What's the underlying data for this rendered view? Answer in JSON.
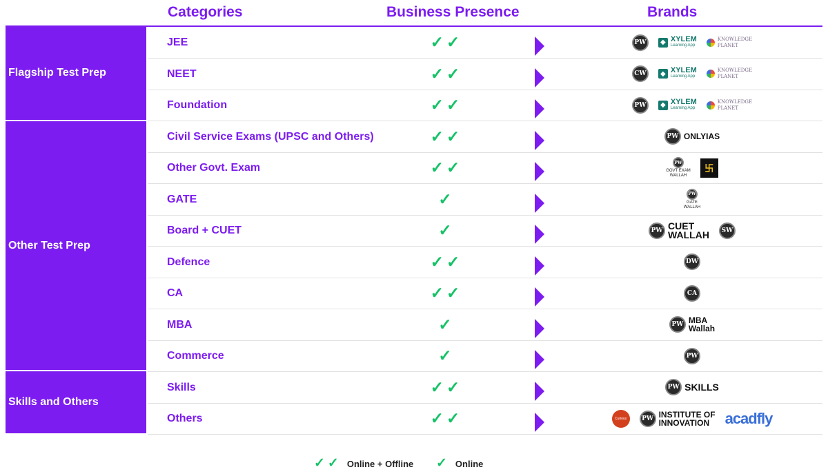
{
  "headers": {
    "categories": "Categories",
    "presence": "Business Presence",
    "brands": "Brands"
  },
  "groups": [
    {
      "label": "Flagship Test Prep"
    },
    {
      "label": "Other Test Prep"
    },
    {
      "label": "Skills and Others"
    }
  ],
  "rows": [
    {
      "category": "JEE",
      "presence": "✓✓",
      "brands": [
        {
          "type": "pw-circle",
          "text": "PW"
        },
        {
          "type": "xylem",
          "name": "XYLEM",
          "sub": "Learning App"
        },
        {
          "type": "knowledge",
          "name": "KNOWLEDGE\nPLANET"
        }
      ]
    },
    {
      "category": "NEET",
      "presence": "✓✓",
      "brands": [
        {
          "type": "pw-circle",
          "text": "CW"
        },
        {
          "type": "xylem",
          "name": "XYLEM",
          "sub": "Learning App"
        },
        {
          "type": "knowledge",
          "name": "KNOWLEDGE\nPLANET"
        }
      ]
    },
    {
      "category": "Foundation",
      "presence": "✓✓",
      "brands": [
        {
          "type": "pw-circle",
          "text": "PW"
        },
        {
          "type": "xylem",
          "name": "XYLEM",
          "sub": "Learning App"
        },
        {
          "type": "knowledge",
          "name": "KNOWLEDGE\nPLANET"
        }
      ]
    },
    {
      "category": "Civil Service Exams (UPSC and Others)",
      "presence": "✓✓",
      "brands": [
        {
          "type": "pw-text",
          "circle": "PW",
          "text": "ONLYIAS"
        }
      ]
    },
    {
      "category": "Other Govt. Exam",
      "presence": "✓✓",
      "brands": [
        {
          "type": "govt",
          "text": "GOVT EXAM\nWALLAH"
        },
        {
          "type": "utkarsh"
        }
      ]
    },
    {
      "category": "GATE",
      "presence": "✓",
      "brands": [
        {
          "type": "gate",
          "text": "GATE\nWALLAH"
        }
      ]
    },
    {
      "category": "Board + CUET",
      "presence": "✓",
      "brands": [
        {
          "type": "pw-text",
          "circle": "PW",
          "text": "CUET\nWALLAH",
          "big": true
        },
        {
          "type": "pw-circle",
          "text": "SW"
        }
      ]
    },
    {
      "category": "Defence",
      "presence": "✓✓",
      "brands": [
        {
          "type": "pw-circle",
          "text": "DW"
        }
      ]
    },
    {
      "category": "CA",
      "presence": "✓✓",
      "brands": [
        {
          "type": "pw-circle",
          "text": "CA"
        }
      ]
    },
    {
      "category": "MBA",
      "presence": "✓",
      "brands": [
        {
          "type": "pw-text",
          "circle": "PW",
          "text": "MBA\nWallah"
        }
      ]
    },
    {
      "category": "Commerce",
      "presence": "✓",
      "brands": [
        {
          "type": "pw-circle",
          "text": "PW"
        }
      ]
    },
    {
      "category": "Skills",
      "presence": "✓✓",
      "brands": [
        {
          "type": "pw-text",
          "circle": "PW",
          "text": "SKILLS",
          "big": true
        }
      ]
    },
    {
      "category": "Others",
      "presence": "✓✓",
      "brands": [
        {
          "type": "curious",
          "text": "Curious"
        },
        {
          "type": "pw-text",
          "circle": "PW",
          "text": "INSTITUTE OF\nINNOVATION"
        },
        {
          "type": "acadfly",
          "text": "acadfly"
        }
      ]
    }
  ],
  "legend": [
    {
      "marks": "✓✓",
      "label": "Online + Offline"
    },
    {
      "marks": "✓",
      "label": "Online"
    }
  ],
  "colors": {
    "accent": "#7c1cf0",
    "check": "#16c267"
  }
}
